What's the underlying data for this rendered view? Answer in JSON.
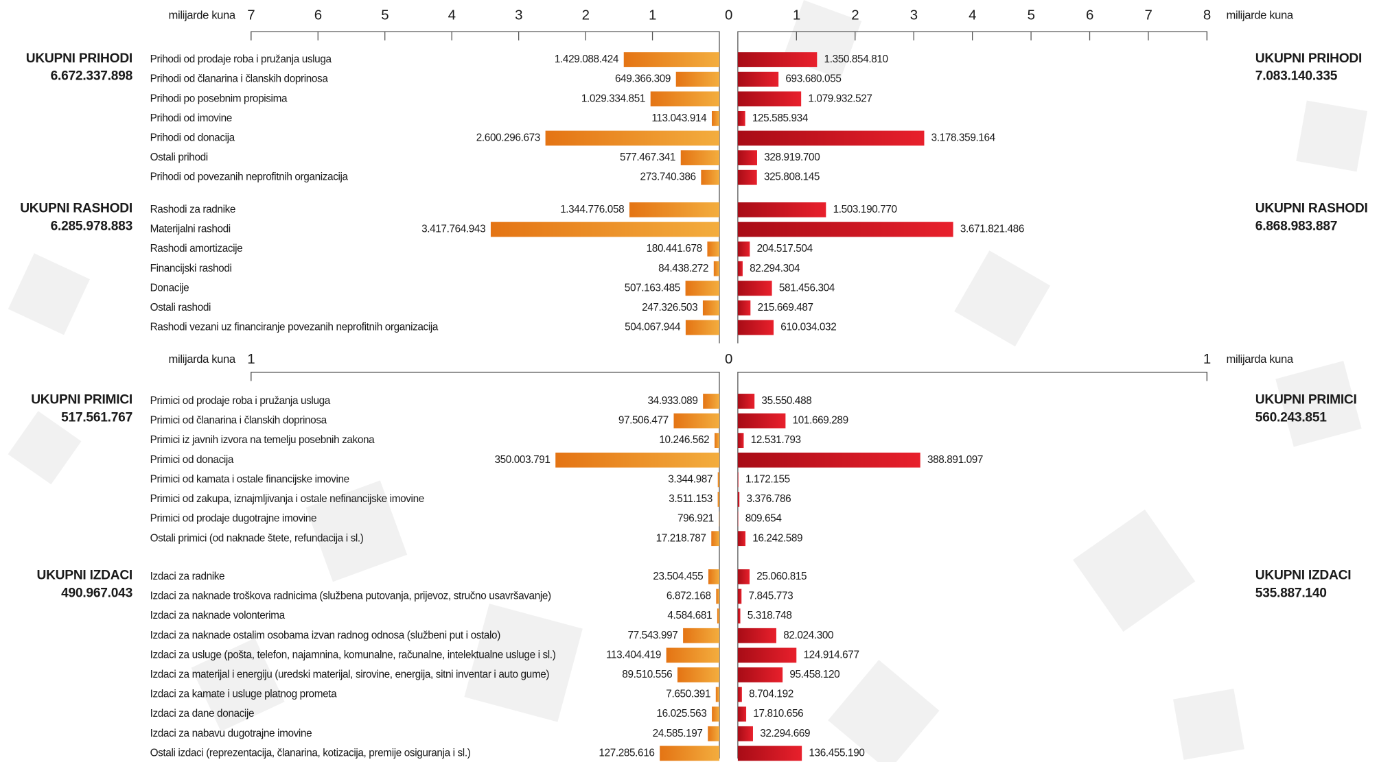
{
  "chart_data": [
    {
      "type": "bar",
      "left_axis": {
        "label": "milijarde kuna",
        "xlim": [
          0,
          7
        ],
        "xticks": [
          1,
          2,
          3,
          4,
          5,
          6,
          7
        ]
      },
      "right_axis": {
        "label": "milijarde kuna",
        "xlim": [
          0,
          8
        ],
        "xticks": [
          1,
          2,
          3,
          4,
          5,
          6,
          7,
          8
        ]
      },
      "zero_tick": 0,
      "colors": {
        "left": [
          "#e47414",
          "#f3ad3e"
        ],
        "right": [
          "#a80c16",
          "#e8202c"
        ]
      },
      "groups": [
        {
          "title": "UKUPNI PRIHODI",
          "total_left": "6.672.337.898",
          "total_right": "7.083.140.335",
          "categories": [
            "Prihodi od prodaje roba i pružanja usluga",
            "Prihodi od članarina i članskih doprinosa",
            "Prihodi po posebnim propisima",
            "Prihodi od imovine",
            "Prihodi od donacija",
            "Ostali prihodi",
            "Prihodi od povezanih neprofitnih organizacija"
          ],
          "left_values": [
            1.429088424,
            0.649366309,
            1.029334851,
            0.113043914,
            2.600296673,
            0.577467341,
            0.273740386
          ],
          "left_value_labels": [
            "1.429.088.424",
            "649.366.309",
            "1.029.334.851",
            "113.043.914",
            "2.600.296.673",
            "577.467.341",
            "273.740.386"
          ],
          "right_values": [
            1.35085481,
            0.693680055,
            1.079932527,
            0.125585934,
            3.178359164,
            0.3289197,
            0.325808145
          ],
          "right_value_labels": [
            "1.350.854.810",
            "693.680.055",
            "1.079.932.527",
            "125.585.934",
            "3.178.359.164",
            "328.919.700",
            "325.808.145"
          ]
        },
        {
          "title": "UKUPNI RASHODI",
          "total_left": "6.285.978.883",
          "total_right": "6.868.983.887",
          "categories": [
            "Rashodi za radnike",
            "Materijalni rashodi",
            "Rashodi amortizacije",
            "Financijski rashodi",
            "Donacije",
            "Ostali rashodi",
            "Rashodi vezani uz financiranje povezanih neprofitnih organizacija"
          ],
          "left_values": [
            1.344776058,
            3.417764943,
            0.180441678,
            0.084438272,
            0.507163485,
            0.247326503,
            0.504067944
          ],
          "left_value_labels": [
            "1.344.776.058",
            "3.417.764.943",
            "180.441.678",
            "84.438.272",
            "507.163.485",
            "247.326.503",
            "504.067.944"
          ],
          "right_values": [
            1.50319077,
            3.671821486,
            0.204517504,
            0.082294304,
            0.581456304,
            0.215669487,
            0.610034032
          ],
          "right_value_labels": [
            "1.503.190.770",
            "3.671.821.486",
            "204.517.504",
            "82.294.304",
            "581.456.304",
            "215.669.487",
            "610.034.032"
          ]
        }
      ]
    },
    {
      "type": "bar",
      "left_axis": {
        "label": "milijarda kuna",
        "xlim": [
          0,
          1
        ],
        "xticks": [
          1
        ]
      },
      "right_axis": {
        "label": "milijarda kuna",
        "xlim": [
          0,
          1
        ],
        "xticks": [
          1
        ]
      },
      "zero_tick": 0,
      "colors": {
        "left": [
          "#e47414",
          "#f3ad3e"
        ],
        "right": [
          "#a80c16",
          "#e8202c"
        ]
      },
      "groups": [
        {
          "title": "UKUPNI PRIMICI",
          "total_left": "517.561.767",
          "total_right": "560.243.851",
          "categories": [
            "Primici od prodaje roba i pružanja usluga",
            "Primici od članarina i članskih doprinosa",
            "Primici iz javnih izvora na temelju posebnih zakona",
            "Primici od donacija",
            "Primici od kamata i ostale financijske imovine",
            "Primici od zakupa, iznajmljivanja i ostale nefinancijske imovine",
            "Primici od prodaje dugotrajne imovine",
            "Ostali primici (od naknade štete, refundacija i sl.)"
          ],
          "left_values": [
            0.034933089,
            0.097506477,
            0.010246562,
            0.350003791,
            0.003344987,
            0.003511153,
            0.000796921,
            0.017218787
          ],
          "left_value_labels": [
            "34.933.089",
            "97.506.477",
            "10.246.562",
            "350.003.791",
            "3.344.987",
            "3.511.153",
            "796.921",
            "17.218.787"
          ],
          "right_values": [
            0.035550488,
            0.101669289,
            0.012531793,
            0.388891097,
            0.001172155,
            0.003376786,
            0.000809654,
            0.016242589
          ],
          "right_value_labels": [
            "35.550.488",
            "101.669.289",
            "12.531.793",
            "388.891.097",
            "1.172.155",
            "3.376.786",
            "809.654",
            "16.242.589"
          ]
        },
        {
          "title": "UKUPNI IZDACI",
          "total_left": "490.967.043",
          "total_right": "535.887.140",
          "categories": [
            "Izdaci za radnike",
            "Izdaci za naknade troškova radnicima (službena putovanja, prijevoz, stručno usavršavanje)",
            "Izdaci za naknade volonterima",
            "Izdaci za naknade ostalim osobama izvan radnog odnosa (službeni put i ostalo)",
            "Izdaci za usluge (pošta, telefon, najamnina, komunalne, računalne, intelektualne usluge i sl.)",
            "Izdaci za materijal i energiju (uredski materijal, sirovine, energija, sitni inventar i auto gume)",
            "Izdaci za kamate i usluge platnog prometa",
            "Izdaci za dane donacije",
            "Izdaci za nabavu dugotrajne imovine",
            "Ostali izdaci (reprezentacija, članarina, kotizacija, premije osiguranja i sl.)"
          ],
          "left_values": [
            0.023504455,
            0.006872168,
            0.004584681,
            0.077543997,
            0.113404419,
            0.089510556,
            0.007650391,
            0.016025563,
            0.024585197,
            0.127285616
          ],
          "left_value_labels": [
            "23.504.455",
            "6.872.168",
            "4.584.681",
            "77.543.997",
            "113.404.419",
            "89.510.556",
            "7.650.391",
            "16.025.563",
            "24.585.197",
            "127.285.616"
          ],
          "right_values": [
            0.025060815,
            0.007845773,
            0.005318748,
            0.0820243,
            0.124914677,
            0.09545812,
            0.008704192,
            0.017810656,
            0.032294669,
            0.13645519
          ],
          "right_value_labels": [
            "25.060.815",
            "7.845.773",
            "5.318.748",
            "82.024.300",
            "124.914.677",
            "95.458.120",
            "8.704.192",
            "17.810.656",
            "32.294.669",
            "136.455.190"
          ]
        }
      ]
    }
  ]
}
